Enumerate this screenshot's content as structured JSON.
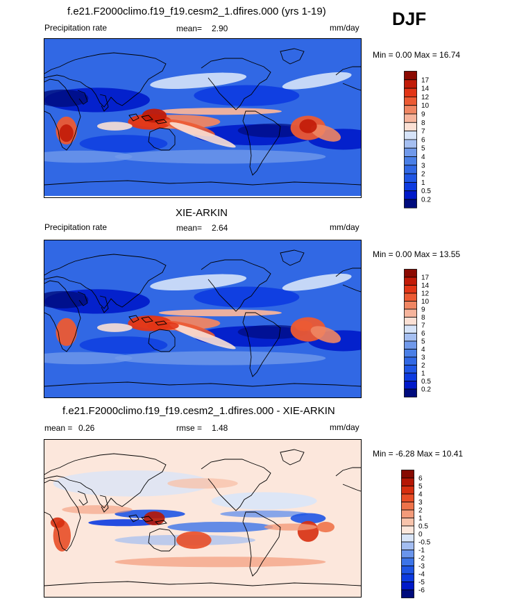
{
  "season": "DJF",
  "panels": [
    {
      "title": "f.e21.F2000climo.f19_f19.cesm2_1.dfires.000 (yrs 1-19)",
      "left_label": "Precipitation rate",
      "center_label": "mean=",
      "center_value": "2.90",
      "right_label": "mm/day",
      "minmax": "Min =   0.00 Max =  16.74"
    },
    {
      "title": "XIE-ARKIN",
      "left_label": "Precipitation rate",
      "center_label": "mean=",
      "center_value": "2.64",
      "right_label": "mm/day",
      "minmax": "Min =   0.00 Max =  13.55"
    },
    {
      "title": "f.e21.F2000climo.f19_f19.cesm2_1.dfires.000 - XIE-ARKIN",
      "left_label": "mean =",
      "left_value": "0.26",
      "center_label": "rmse =",
      "center_value": "1.48",
      "right_label": "mm/day",
      "minmax": "Min =  -6.28 Max =  10.41"
    }
  ],
  "chart_data": [
    {
      "type": "heatmap",
      "title": "f.e21.F2000climo.f19_f19.cesm2_1.dfires.000 (yrs 1-19)",
      "variable": "Precipitation rate",
      "units": "mm/day",
      "mean": 2.9,
      "min": 0.0,
      "max": 16.74,
      "colorbar_levels": [
        "0.2",
        "0.5",
        "1",
        "2",
        "3",
        "4",
        "5",
        "6",
        "7",
        "8",
        "9",
        "10",
        "12",
        "14",
        "17"
      ],
      "colorbar_colors": [
        "#000c7d",
        "#0019c9",
        "#0d3be0",
        "#1f55e4",
        "#3168e4",
        "#4a7fe6",
        "#7099ea",
        "#a5bff1",
        "#d6e3f8",
        "#fbe0d4",
        "#f6b49c",
        "#f08663",
        "#ec5a33",
        "#e23516",
        "#c21b08",
        "#8b0a02"
      ]
    },
    {
      "type": "heatmap",
      "title": "XIE-ARKIN",
      "variable": "Precipitation rate",
      "units": "mm/day",
      "mean": 2.64,
      "min": 0.0,
      "max": 13.55,
      "colorbar_levels": [
        "0.2",
        "0.5",
        "1",
        "2",
        "3",
        "4",
        "5",
        "6",
        "7",
        "8",
        "9",
        "10",
        "12",
        "14",
        "17"
      ],
      "colorbar_colors": [
        "#000c7d",
        "#0019c9",
        "#0d3be0",
        "#1f55e4",
        "#3168e4",
        "#4a7fe6",
        "#7099ea",
        "#a5bff1",
        "#d6e3f8",
        "#fbe0d4",
        "#f6b49c",
        "#f08663",
        "#ec5a33",
        "#e23516",
        "#c21b08",
        "#8b0a02"
      ]
    },
    {
      "type": "heatmap",
      "title": "f.e21.F2000climo.f19_f19.cesm2_1.dfires.000 - XIE-ARKIN",
      "units": "mm/day",
      "mean": 0.26,
      "rmse": 1.48,
      "min": -6.28,
      "max": 10.41,
      "colorbar_levels": [
        "-6",
        "-5",
        "-4",
        "-3",
        "-2",
        "-1",
        "-0.5",
        "0",
        "0.5",
        "1",
        "2",
        "3",
        "4",
        "5",
        "6"
      ],
      "colorbar_colors": [
        "#000c7d",
        "#0019c9",
        "#0d3be0",
        "#1f55e4",
        "#3c74e8",
        "#6a95ec",
        "#a3bdf1",
        "#d9e5f8",
        "#fce7dc",
        "#f8c3ab",
        "#f39b7a",
        "#ee734a",
        "#e84e27",
        "#d72f10",
        "#b51705",
        "#860b02"
      ]
    }
  ]
}
